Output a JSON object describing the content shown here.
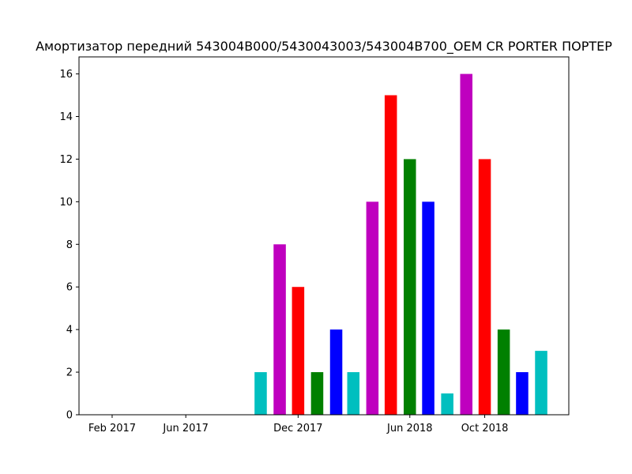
{
  "chart_data": {
    "type": "bar",
    "title": "Амортизатор передний 543004B000/5430043003/543004B700_OEM CR PORTER ПОРТЕР",
    "xlabel": "",
    "ylabel": "",
    "ylim": [
      0,
      16.8
    ],
    "grid": false,
    "x_axis": {
      "type": "date",
      "range": [
        "2016-12-09",
        "2019-02-15"
      ],
      "ticks": [
        {
          "date": "2017-02-01",
          "label": "Feb 2017"
        },
        {
          "date": "2017-06-01",
          "label": "Jun 2017"
        },
        {
          "date": "2017-12-01",
          "label": "Dec 2017"
        },
        {
          "date": "2018-06-01",
          "label": "Jun 2018"
        },
        {
          "date": "2018-10-01",
          "label": "Oct 2018"
        }
      ]
    },
    "y_ticks": [
      0,
      2,
      4,
      6,
      8,
      10,
      12,
      14,
      16
    ],
    "bar_width_days": 20,
    "colors": [
      "#00bfbf",
      "#bf00bf",
      "#ff0000",
      "#008000",
      "#0000ff"
    ],
    "bars": [
      {
        "date": "2017-10-01",
        "value": 2,
        "color": "#00bfbf"
      },
      {
        "date": "2017-11-01",
        "value": 8,
        "color": "#bf00bf"
      },
      {
        "date": "2017-12-01",
        "value": 6,
        "color": "#ff0000"
      },
      {
        "date": "2018-01-01",
        "value": 2,
        "color": "#008000"
      },
      {
        "date": "2018-02-01",
        "value": 4,
        "color": "#0000ff"
      },
      {
        "date": "2018-03-01",
        "value": 2,
        "color": "#00bfbf"
      },
      {
        "date": "2018-04-01",
        "value": 10,
        "color": "#bf00bf"
      },
      {
        "date": "2018-05-01",
        "value": 15,
        "color": "#ff0000"
      },
      {
        "date": "2018-06-01",
        "value": 12,
        "color": "#008000"
      },
      {
        "date": "2018-07-01",
        "value": 10,
        "color": "#0000ff"
      },
      {
        "date": "2018-08-01",
        "value": 1,
        "color": "#00bfbf"
      },
      {
        "date": "2018-09-01",
        "value": 16,
        "color": "#bf00bf"
      },
      {
        "date": "2018-10-01",
        "value": 12,
        "color": "#ff0000"
      },
      {
        "date": "2018-11-01",
        "value": 4,
        "color": "#008000"
      },
      {
        "date": "2018-12-01",
        "value": 2,
        "color": "#0000ff"
      },
      {
        "date": "2019-01-01",
        "value": 3,
        "color": "#00bfbf"
      }
    ]
  }
}
